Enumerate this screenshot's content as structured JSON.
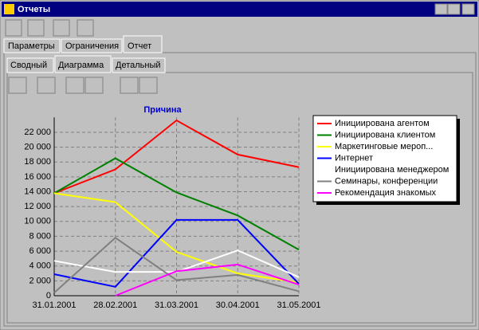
{
  "window": {
    "title": "Отчеты",
    "tabs": [
      "Параметры",
      "Ограничения",
      "Отчет"
    ],
    "subtabs": [
      "Сводный",
      "Диаграмма",
      "Детальный"
    ]
  },
  "chart_data": {
    "type": "line",
    "title": "Причина",
    "categories": [
      "31.01.2001",
      "28.02.2001",
      "31.03.2001",
      "30.04.2001",
      "31.05.2001"
    ],
    "series": [
      {
        "name": "Инициирована агентом",
        "color": "#ff0000",
        "values": [
          13800,
          17000,
          23600,
          19000,
          17300
        ]
      },
      {
        "name": "Инициирована клиентом",
        "color": "#008000",
        "values": [
          13800,
          18500,
          13900,
          10800,
          6200
        ]
      },
      {
        "name": "Маркетинговые мероп...",
        "color": "#ffff00",
        "values": [
          13800,
          12600,
          5900,
          3000,
          1800
        ]
      },
      {
        "name": "Интернет",
        "color": "#0000ff",
        "values": [
          2900,
          1200,
          10200,
          10200,
          1600
        ]
      },
      {
        "name": "Инициирована менеджером",
        "color": "#ffffff",
        "values": [
          4700,
          3200,
          3200,
          6100,
          2500
        ]
      },
      {
        "name": "Семинары, конференции",
        "color": "#808080",
        "values": [
          400,
          7800,
          2100,
          2800,
          600
        ]
      },
      {
        "name": "Рекомендация знакомых",
        "color": "#ff00ff",
        "values": [
          null,
          0,
          3300,
          4200,
          1500
        ]
      }
    ],
    "ylim": [
      0,
      24000
    ],
    "yticks": [
      0,
      {
        "value": 2000,
        "label": "2 000"
      },
      {
        "value": 4000,
        "label": "4 000"
      },
      {
        "value": 6000,
        "label": "6 000"
      },
      {
        "value": 8000,
        "label": "8 000"
      },
      {
        "value": 10000,
        "label": "10 000"
      },
      {
        "value": 12000,
        "label": "12 000"
      },
      {
        "value": 14000,
        "label": "14 000"
      },
      {
        "value": 16000,
        "label": "16 000"
      },
      {
        "value": 18000,
        "label": "18 000"
      },
      {
        "value": 20000,
        "label": "20 000"
      },
      {
        "value": 22000,
        "label": "22 000"
      }
    ],
    "grid": true
  }
}
